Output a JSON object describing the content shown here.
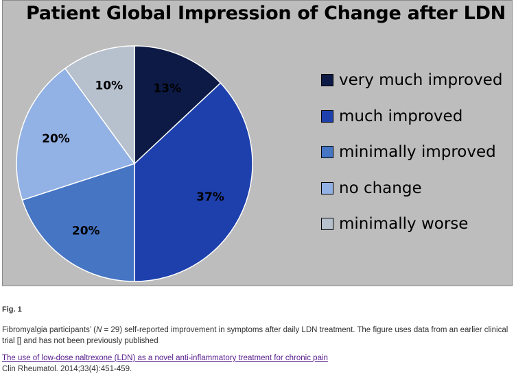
{
  "chart_data": {
    "type": "pie",
    "title": "Patient Global Impression of Change after LDN",
    "categories": [
      "very much improved",
      "much improved",
      "minimally improved",
      "no change",
      "minimally worse"
    ],
    "values": [
      13,
      37,
      20,
      20,
      10
    ],
    "labels": [
      "13%",
      "37%",
      "20%",
      "20%",
      "10%"
    ],
    "colors": [
      "#0c1a45",
      "#1e40ad",
      "#4675c4",
      "#92b1e4",
      "#b7c1ce"
    ],
    "label_colors": [
      "#000000",
      "#000000",
      "#000000",
      "#000000",
      "#000000"
    ],
    "legend_position": "right",
    "frame_background": "#bdbdbd"
  },
  "figure": {
    "label": "Fig. 1",
    "caption_pre": "Fibromyalgia participants’ (",
    "caption_n": "N",
    "caption_post": " = 29) self-reported improvement in symptoms after daily LDN treatment. The figure uses data from an earlier clinical trial [] and has not been previously published",
    "link_text": "The use of low-dose naltrexone (LDN) as a novel anti-inflammatory treatment for chronic pain",
    "citation": "Clin Rheumatol. 2014;33(4):451-459."
  }
}
